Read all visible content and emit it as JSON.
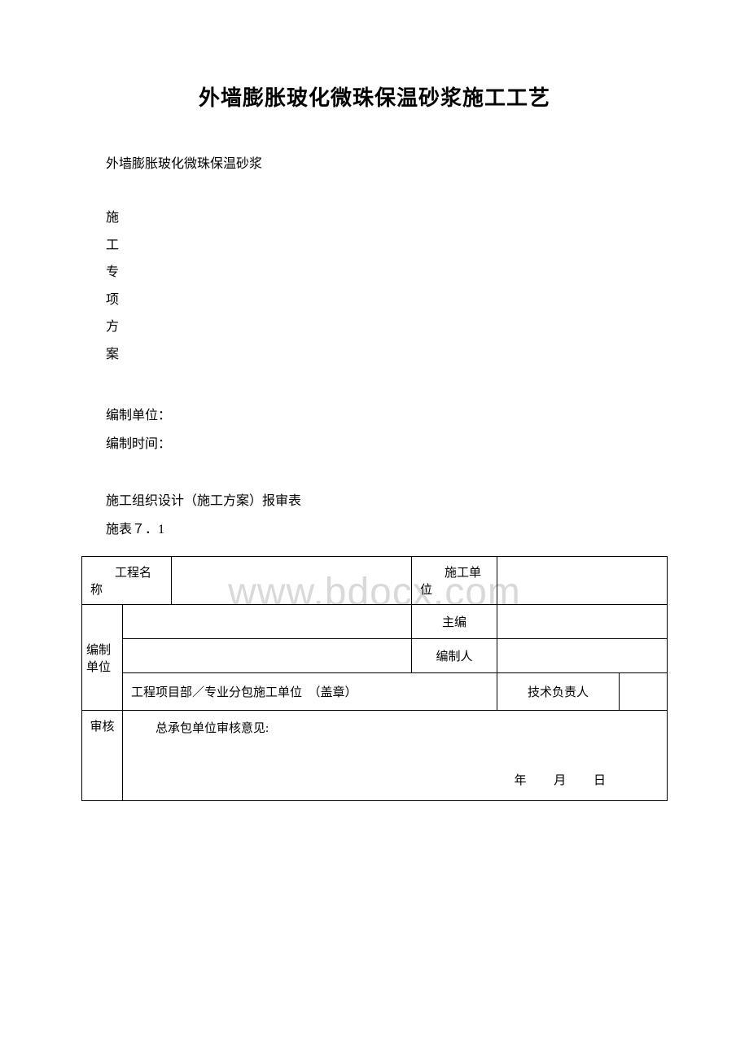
{
  "title": "外墙膨胀玻化微珠保温砂浆施工工艺",
  "subtitle": "外墙膨胀玻化微珠保温砂浆",
  "vertical_chars": {
    "c1": "施",
    "c2": "工",
    "c3": "专",
    "c4": "项",
    "c5": "方",
    "c6": "案"
  },
  "info": {
    "unit_label": "编制单位：",
    "time_label": "编制时间："
  },
  "watermark": "www.bdocx.com",
  "section": {
    "heading": "施工组织设计（施工方案）报审表",
    "table_no": "施表７．1"
  },
  "table": {
    "row1_c1": "工程名称",
    "row1_c3": "施工单位",
    "row2_left": "编制单位",
    "row2_sub1_c2": "主编",
    "row2_sub2_c2": "编制人",
    "row2_sub3_c1": "工程项目部／专业分包施工单位　（盖章）",
    "row2_sub3_c2": "技术负责人",
    "row3_left": "审核",
    "row3_heading": "总承包单位审核意见:",
    "date_year": "年",
    "date_month": "月",
    "date_day": "日"
  }
}
